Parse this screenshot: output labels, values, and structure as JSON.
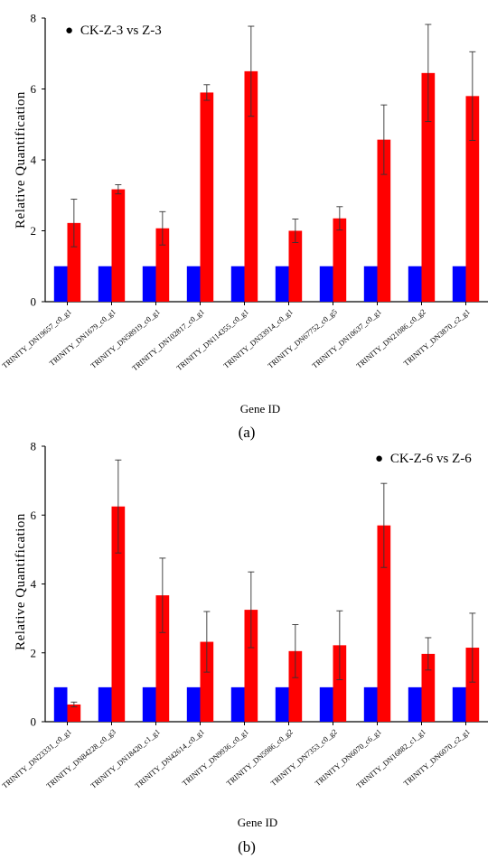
{
  "chart_data": [
    {
      "type": "bar",
      "panel_label": "(a)",
      "legend_label": "CK-Z-3 vs Z-3",
      "legend_placement": "top-left",
      "xlabel": "Gene ID",
      "ylabel": "Relative Quantification",
      "ylim": [
        0,
        8
      ],
      "yticks": [
        0,
        2,
        4,
        6,
        8
      ],
      "grid": false,
      "colors": {
        "control": "#0000ff",
        "treatment": "#ff0000",
        "error_bar": "#333333"
      },
      "categories": [
        "TRINITY_DN19657_c0_g1",
        "TRINITY_DN1679_c0_g1",
        "TRINITY_DN58919_c0_g1",
        "TRINITY_DN102817_c0_g1",
        "TRINITY_DN114355_c0_g1",
        "TRINITY_DN33914_c0_g1",
        "TRINITY_DN67752_c0_g5",
        "TRINITY_DN10637_c0_g1",
        "TRINITY_DN21086_c0_g2",
        "TRINITY_DN3870_c2_g1"
      ],
      "series": [
        {
          "values": [
            1,
            1,
            1,
            1,
            1,
            1,
            1,
            1,
            1,
            1
          ]
        },
        {
          "values": [
            2.22,
            3.17,
            2.07,
            5.9,
            6.5,
            2.0,
            2.35,
            4.57,
            6.45,
            5.8
          ],
          "errors": [
            0.67,
            0.13,
            0.47,
            0.22,
            1.27,
            0.33,
            0.33,
            0.98,
            1.37,
            1.25
          ]
        }
      ]
    },
    {
      "type": "bar",
      "panel_label": "(b)",
      "legend_label": "CK-Z-6 vs Z-6",
      "legend_placement": "top-right",
      "xlabel": "Gene ID",
      "ylabel": "Relative Quantification",
      "ylim": [
        0,
        8
      ],
      "yticks": [
        0,
        2,
        4,
        6,
        8
      ],
      "grid": false,
      "colors": {
        "control": "#0000ff",
        "treatment": "#ff0000",
        "error_bar": "#333333"
      },
      "categories": [
        "TRINITY_DN23331_c0_g1",
        "TRINITY_DN84228_c0_g3",
        "TRINITY_DN18420_c1_g1",
        "TRINITY_DN42614_c0_g1",
        "TRINITY_DN9936_c0_g1",
        "TRINITY_DN5986_c0_g2",
        "TRINITY_DN7353_c0_g2",
        "TRINITY_DN6070_c6_g1",
        "TRINITY_DN16882_c1_g1",
        "TRINITY_DN6070_c2_g1"
      ],
      "series": [
        {
          "values": [
            1,
            1,
            1,
            1,
            1,
            1,
            1,
            1,
            1,
            1
          ]
        },
        {
          "values": [
            0.5,
            6.25,
            3.67,
            2.32,
            3.25,
            2.05,
            2.22,
            5.7,
            1.97,
            2.15
          ],
          "errors": [
            0.07,
            1.35,
            1.08,
            0.88,
            1.1,
            0.77,
            1.0,
            1.22,
            0.47,
            1.0
          ]
        }
      ]
    }
  ]
}
